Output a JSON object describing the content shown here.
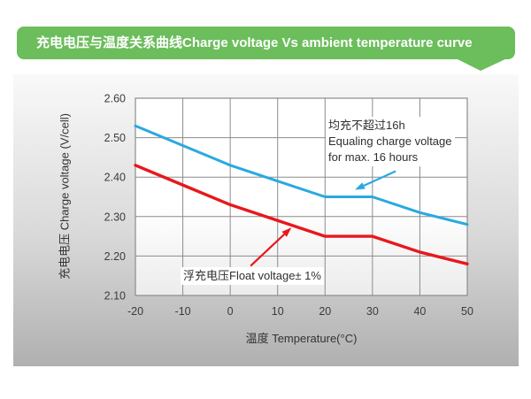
{
  "banner": {
    "title": "充电电压与温度关系曲线Charge voltage Vs ambient temperature curve",
    "background": "#6cbd5c",
    "text_color": "#ffffff"
  },
  "chart_data": {
    "type": "line",
    "title": "充电电压与温度关系曲线 Charge voltage Vs ambient temperature curve",
    "x": [
      -20,
      -10,
      0,
      10,
      20,
      30,
      40,
      50
    ],
    "series": [
      {
        "name": "均充 Equalizing charge voltage (max. 16 hours)",
        "color": "#29a9e0",
        "values": [
          2.53,
          2.48,
          2.43,
          2.39,
          2.35,
          2.35,
          2.31,
          2.28
        ]
      },
      {
        "name": "浮充电压 Float voltage ± 1%",
        "color": "#e8181c",
        "values": [
          2.43,
          2.38,
          2.33,
          2.29,
          2.25,
          2.25,
          2.21,
          2.18
        ]
      }
    ],
    "xlabel": "温度 Temperature(°C)",
    "ylabel": "充电电压 Charge voltage (V/cell)",
    "xlim": [
      -20,
      50
    ],
    "ylim": [
      2.1,
      2.6
    ],
    "xtick_labels": [
      "-20",
      "-10",
      "0",
      "10",
      "20",
      "30",
      "40",
      "50"
    ],
    "ytick_labels": [
      "2.10",
      "2.20",
      "2.30",
      "2.40",
      "2.50",
      "2.60"
    ],
    "grid": true,
    "legend_position": "none (arrow annotations inside plot)",
    "annotations": [
      {
        "target": "series-0",
        "lines": [
          "均充不超过16h",
          "Equaling charge voltage",
          "for max. 16 hours"
        ],
        "arrow_color": "#29a9e0",
        "arrow_from": [
          34.9,
          2.415
        ],
        "arrow_to": [
          26.3,
          2.368
        ]
      },
      {
        "target": "series-1",
        "lines": [
          "浮充电压Float voltage± 1%"
        ],
        "arrow_color": "#e8181c",
        "arrow_from": [
          4.3,
          2.175
        ],
        "arrow_to": [
          12.9,
          2.272
        ]
      }
    ],
    "colors": {
      "grid": "#8c8c8c",
      "tick_text": "#3b3b3b",
      "plot_background": "#ffffff",
      "panel_top": "#f9f9f9",
      "panel_bottom": "#b0b0b0"
    }
  }
}
